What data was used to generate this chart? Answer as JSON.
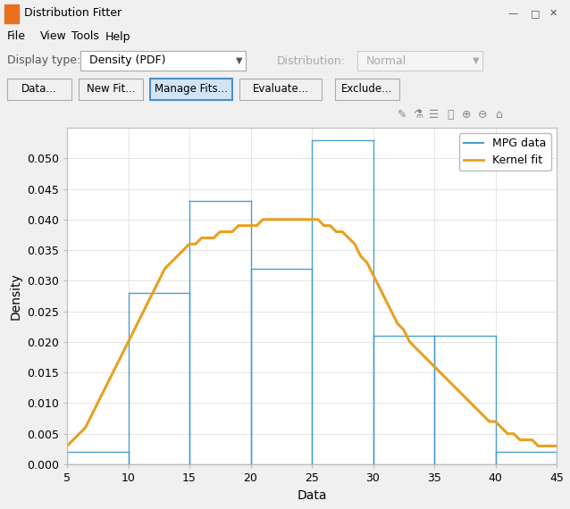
{
  "xlabel": "Data",
  "ylabel": "Density",
  "xlim": [
    5,
    45
  ],
  "ylim": [
    0,
    0.055
  ],
  "yticks": [
    0,
    0.005,
    0.01,
    0.015,
    0.02,
    0.025,
    0.03,
    0.035,
    0.04,
    0.045,
    0.05
  ],
  "xticks": [
    5,
    10,
    15,
    20,
    25,
    30,
    35,
    40,
    45
  ],
  "hist_bins": [
    5,
    10,
    15,
    20,
    25,
    30,
    35,
    40,
    45
  ],
  "hist_heights": [
    0.002,
    0.028,
    0.043,
    0.032,
    0.053,
    0.021,
    0.021,
    0.002
  ],
  "hist_color": "#4C9ECD",
  "kernel_color": "#E8A020",
  "kernel_x": [
    5.0,
    5.5,
    6.0,
    6.5,
    7.0,
    7.5,
    8.0,
    8.5,
    9.0,
    9.5,
    10.0,
    10.5,
    11.0,
    11.5,
    12.0,
    12.5,
    13.0,
    13.5,
    14.0,
    14.5,
    15.0,
    15.5,
    16.0,
    16.5,
    17.0,
    17.5,
    18.0,
    18.5,
    19.0,
    19.5,
    20.0,
    20.5,
    21.0,
    21.5,
    22.0,
    22.5,
    23.0,
    23.5,
    24.0,
    24.5,
    25.0,
    25.5,
    26.0,
    26.5,
    27.0,
    27.5,
    28.0,
    28.5,
    29.0,
    29.5,
    30.0,
    30.5,
    31.0,
    31.5,
    32.0,
    32.5,
    33.0,
    33.5,
    34.0,
    34.5,
    35.0,
    35.5,
    36.0,
    36.5,
    37.0,
    37.5,
    38.0,
    38.5,
    39.0,
    39.5,
    40.0,
    40.5,
    41.0,
    41.5,
    42.0,
    42.5,
    43.0,
    43.5,
    44.0,
    44.5,
    45.0
  ],
  "kernel_y": [
    0.003,
    0.004,
    0.005,
    0.006,
    0.008,
    0.01,
    0.012,
    0.014,
    0.016,
    0.018,
    0.02,
    0.022,
    0.024,
    0.026,
    0.028,
    0.03,
    0.032,
    0.033,
    0.034,
    0.035,
    0.036,
    0.036,
    0.037,
    0.037,
    0.037,
    0.038,
    0.038,
    0.038,
    0.039,
    0.039,
    0.039,
    0.039,
    0.04,
    0.04,
    0.04,
    0.04,
    0.04,
    0.04,
    0.04,
    0.04,
    0.04,
    0.04,
    0.039,
    0.039,
    0.038,
    0.038,
    0.037,
    0.036,
    0.034,
    0.033,
    0.031,
    0.029,
    0.027,
    0.025,
    0.023,
    0.022,
    0.02,
    0.019,
    0.018,
    0.017,
    0.016,
    0.015,
    0.014,
    0.013,
    0.012,
    0.011,
    0.01,
    0.009,
    0.008,
    0.007,
    0.007,
    0.006,
    0.005,
    0.005,
    0.004,
    0.004,
    0.004,
    0.003,
    0.003,
    0.003,
    0.003
  ],
  "legend_labels": [
    "MPG data",
    "Kernel fit"
  ],
  "win_bg": "#F0F0F0",
  "plot_bg": "#FFFFFF",
  "grid_color": "#E0E0E0",
  "win_title": "Distribution Fitter",
  "menu_items": [
    "File",
    "View",
    "Tools",
    "Help"
  ],
  "display_type_label": "Display type:",
  "display_type_val": "Density (PDF)",
  "distribution_label": "Distribution:",
  "distribution_val": "Normal",
  "buttons": [
    "Data...",
    "New Fit...",
    "Manage Fits...",
    "Evaluate...",
    "Exclude..."
  ],
  "manage_fits_highlighted": 2,
  "fig_width": 6.38,
  "fig_height": 5.7,
  "fig_dpi": 100
}
